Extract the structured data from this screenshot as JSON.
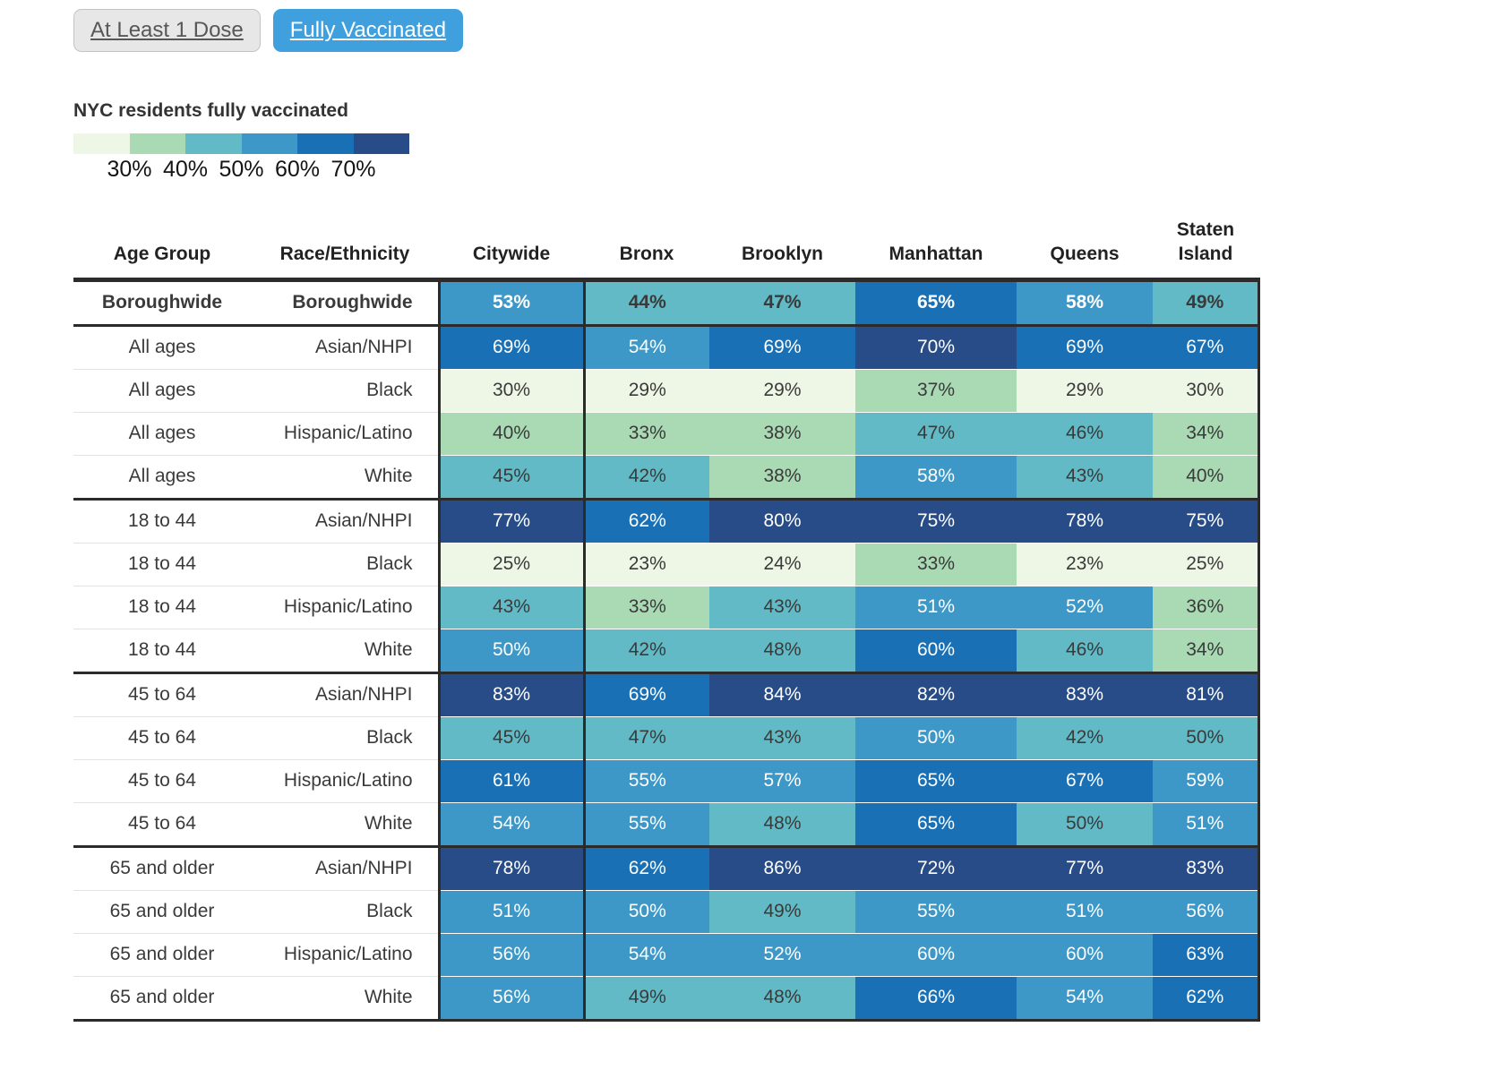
{
  "toggle": {
    "at_least_1_dose_label": "At Least 1 Dose",
    "fully_vaccinated_label": "Fully Vaccinated",
    "active": "Fully Vaccinated",
    "active_color": "#3fa0dd"
  },
  "legend": {
    "title": "NYC residents fully vaccinated",
    "tick_labels": [
      "30%",
      "40%",
      "50%",
      "60%",
      "70%"
    ]
  },
  "colors": {
    "scale": [
      "#eef7e6",
      "#a9dab4",
      "#61bac5",
      "#3d97c7",
      "#1a70b5",
      "#284c87"
    ],
    "dark_text": "#3a3a3a",
    "light_text": "#ffffff",
    "border_dark": "#2b2b2b"
  },
  "chart_data": {
    "type": "heatmap",
    "title": "NYC residents fully vaccinated",
    "unit": "%",
    "columns": [
      "Age Group",
      "Race/Ethnicity",
      "Citywide",
      "Bronx",
      "Brooklyn",
      "Manhattan",
      "Queens",
      "Staten Island"
    ],
    "scale_bins": [
      "<30%",
      "30-40%",
      "40-50%",
      "50-60%",
      "60-70%",
      "70%+"
    ],
    "rows": [
      {
        "age_group": "Boroughwide",
        "race_ethnicity": "Boroughwide",
        "bold": true,
        "group_start": false,
        "values": [
          53,
          44,
          47,
          65,
          58,
          49
        ],
        "color_bands": [
          3,
          2,
          2,
          4,
          3,
          2
        ]
      },
      {
        "age_group": "All ages",
        "race_ethnicity": "Asian/NHPI",
        "bold": false,
        "group_start": true,
        "values": [
          69,
          54,
          69,
          70,
          69,
          67
        ],
        "color_bands": [
          4,
          3,
          4,
          5,
          4,
          4
        ]
      },
      {
        "age_group": "All ages",
        "race_ethnicity": "Black",
        "bold": false,
        "group_start": false,
        "values": [
          30,
          29,
          29,
          37,
          29,
          30
        ],
        "color_bands": [
          0,
          0,
          0,
          1,
          0,
          0
        ]
      },
      {
        "age_group": "All ages",
        "race_ethnicity": "Hispanic/Latino",
        "bold": false,
        "group_start": false,
        "values": [
          40,
          33,
          38,
          47,
          46,
          34
        ],
        "color_bands": [
          1,
          1,
          1,
          2,
          2,
          1
        ]
      },
      {
        "age_group": "All ages",
        "race_ethnicity": "White",
        "bold": false,
        "group_start": false,
        "values": [
          45,
          42,
          38,
          58,
          43,
          40
        ],
        "color_bands": [
          2,
          2,
          1,
          3,
          2,
          1
        ]
      },
      {
        "age_group": "18 to 44",
        "race_ethnicity": "Asian/NHPI",
        "bold": false,
        "group_start": true,
        "values": [
          77,
          62,
          80,
          75,
          78,
          75
        ],
        "color_bands": [
          5,
          4,
          5,
          5,
          5,
          5
        ]
      },
      {
        "age_group": "18 to 44",
        "race_ethnicity": "Black",
        "bold": false,
        "group_start": false,
        "values": [
          25,
          23,
          24,
          33,
          23,
          25
        ],
        "color_bands": [
          0,
          0,
          0,
          1,
          0,
          0
        ]
      },
      {
        "age_group": "18 to 44",
        "race_ethnicity": "Hispanic/Latino",
        "bold": false,
        "group_start": false,
        "values": [
          43,
          33,
          43,
          51,
          52,
          36
        ],
        "color_bands": [
          2,
          1,
          2,
          3,
          3,
          1
        ]
      },
      {
        "age_group": "18 to 44",
        "race_ethnicity": "White",
        "bold": false,
        "group_start": false,
        "values": [
          50,
          42,
          48,
          60,
          46,
          34
        ],
        "color_bands": [
          3,
          2,
          2,
          4,
          2,
          1
        ]
      },
      {
        "age_group": "45 to 64",
        "race_ethnicity": "Asian/NHPI",
        "bold": false,
        "group_start": true,
        "values": [
          83,
          69,
          84,
          82,
          83,
          81
        ],
        "color_bands": [
          5,
          4,
          5,
          5,
          5,
          5
        ]
      },
      {
        "age_group": "45 to 64",
        "race_ethnicity": "Black",
        "bold": false,
        "group_start": false,
        "values": [
          45,
          47,
          43,
          50,
          42,
          50
        ],
        "color_bands": [
          2,
          2,
          2,
          3,
          2,
          2
        ]
      },
      {
        "age_group": "45 to 64",
        "race_ethnicity": "Hispanic/Latino",
        "bold": false,
        "group_start": false,
        "values": [
          61,
          55,
          57,
          65,
          67,
          59
        ],
        "color_bands": [
          4,
          3,
          3,
          4,
          4,
          3
        ]
      },
      {
        "age_group": "45 to 64",
        "race_ethnicity": "White",
        "bold": false,
        "group_start": false,
        "values": [
          54,
          55,
          48,
          65,
          50,
          51
        ],
        "color_bands": [
          3,
          3,
          2,
          4,
          2,
          3
        ]
      },
      {
        "age_group": "65 and older",
        "race_ethnicity": "Asian/NHPI",
        "bold": false,
        "group_start": true,
        "values": [
          78,
          62,
          86,
          72,
          77,
          83
        ],
        "color_bands": [
          5,
          4,
          5,
          5,
          5,
          5
        ]
      },
      {
        "age_group": "65 and older",
        "race_ethnicity": "Black",
        "bold": false,
        "group_start": false,
        "values": [
          51,
          50,
          49,
          55,
          51,
          56
        ],
        "color_bands": [
          3,
          3,
          2,
          3,
          3,
          3
        ]
      },
      {
        "age_group": "65 and older",
        "race_ethnicity": "Hispanic/Latino",
        "bold": false,
        "group_start": false,
        "values": [
          56,
          54,
          52,
          60,
          60,
          63
        ],
        "color_bands": [
          3,
          3,
          3,
          3,
          3,
          4
        ]
      },
      {
        "age_group": "65 and older",
        "race_ethnicity": "White",
        "bold": false,
        "group_start": false,
        "values": [
          56,
          49,
          48,
          66,
          54,
          62
        ],
        "color_bands": [
          3,
          2,
          2,
          4,
          3,
          4
        ]
      }
    ]
  }
}
